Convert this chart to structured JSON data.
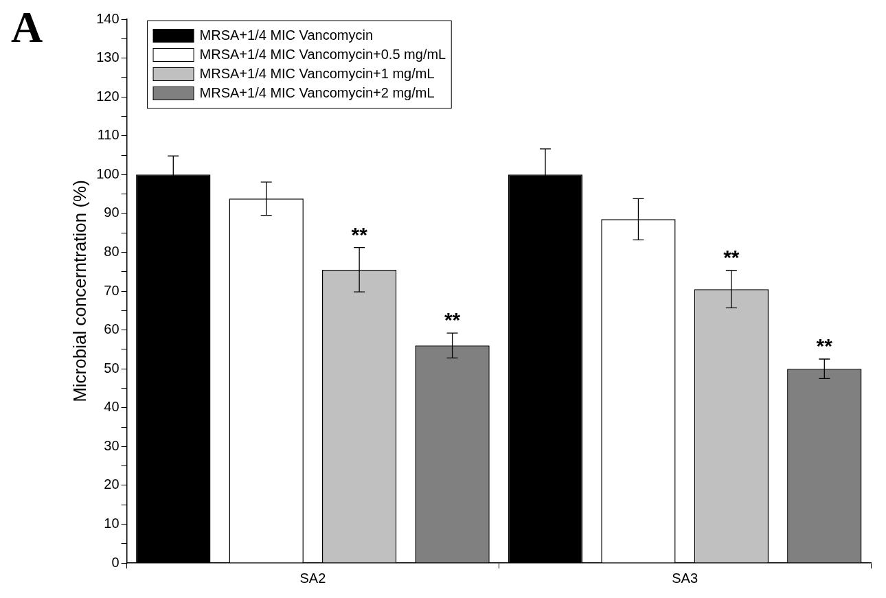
{
  "chart_data": {
    "type": "bar",
    "ylabel": "Microbial concerntration (%)",
    "categories": [
      "SA2",
      "SA3"
    ],
    "series": [
      {
        "name": "MRSA+1/4 MIC Vancomycin",
        "color": "#000000",
        "values": [
          100,
          100
        ],
        "errors": [
          4.8,
          6.6
        ]
      },
      {
        "name": "MRSA+1/4 MIC Vancomycin+0.5 mg/mL",
        "color": "#ffffff",
        "values": [
          93.8,
          88.5
        ],
        "errors": [
          4.3,
          5.3
        ]
      },
      {
        "name": "MRSA+1/4 MIC Vancomycin+1 mg/mL",
        "color": "#c0c0c0",
        "values": [
          75.5,
          70.5
        ],
        "errors": [
          5.7,
          4.8
        ],
        "value_labels": [
          "**",
          "**"
        ]
      },
      {
        "name": "MRSA+1/4 MIC Vancomycin+2 mg/mL",
        "color": "#808080",
        "values": [
          56,
          50
        ],
        "errors": [
          3.2,
          2.5
        ],
        "value_labels": [
          "**",
          "**"
        ]
      }
    ],
    "ylim": [
      0,
      140
    ],
    "yticks": [
      0,
      {
        "value": 5,
        "label": null
      },
      10,
      {
        "value": 15,
        "label": null
      },
      20,
      {
        "value": 25,
        "label": null
      },
      30,
      {
        "value": 35,
        "label": null
      },
      40,
      {
        "value": 45,
        "label": null
      },
      50,
      {
        "value": 55,
        "label": null
      },
      60,
      {
        "value": 65,
        "label": null
      },
      70,
      {
        "value": 75,
        "label": null
      },
      80,
      {
        "value": 85,
        "label": null
      },
      90,
      {
        "value": 95,
        "label": null
      },
      100,
      {
        "value": 105,
        "label": null
      },
      110,
      {
        "value": 115,
        "label": null
      },
      120,
      {
        "value": 125,
        "label": null
      },
      130,
      {
        "value": 135,
        "label": null
      },
      140
    ],
    "grid": false,
    "legend": "top left",
    "annotations": [
      "A"
    ]
  }
}
